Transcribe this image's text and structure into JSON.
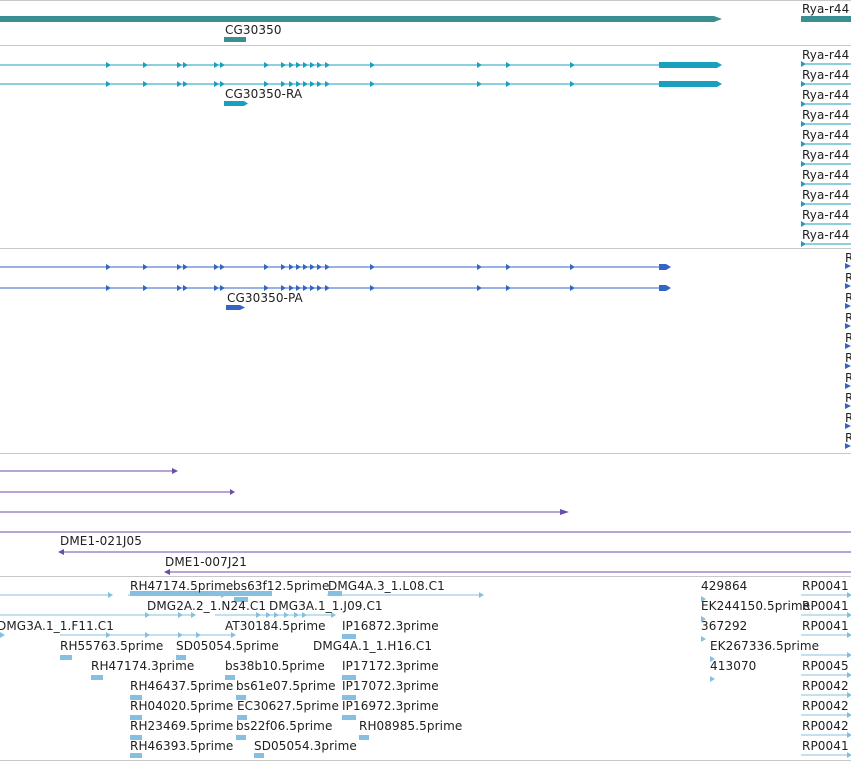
{
  "colors": {
    "gene": "#3a8f92",
    "transcript": "#1aa0bf",
    "protein": "#3366c4",
    "clone": "#6b4ea8",
    "est": "#86c0e0",
    "separator": "#c8c8c8"
  },
  "tracks": {
    "gene": {
      "labels": [
        "CG30350",
        "Rya-r44"
      ]
    },
    "transcripts": {
      "main_label": "CG30350-RA",
      "side_labels": [
        "Rya-r44",
        "Rya-r44",
        "Rya-r44",
        "Rya-r44",
        "Rya-r44",
        "Rya-r44",
        "Rya-r44",
        "Rya-r44",
        "Rya-r44",
        "Rya-r44"
      ]
    },
    "proteins": {
      "main_label": "CG30350-PA",
      "side_labels": [
        "R",
        "R",
        "R",
        "R",
        "R",
        "R",
        "R",
        "R",
        "R",
        "R"
      ]
    },
    "clones": {
      "labels": [
        "DME1-021J05",
        "DME1-007J21"
      ]
    },
    "ests": {
      "labels": [
        "RH47174.5prime",
        "bs63f12.5prime",
        "DMG4A.3_1.L08.C1",
        "429864",
        "RP0041",
        "DMG2A.2_1.N24.C1",
        "DMG3A.1_1.J09.C1",
        "EK244150.5prime",
        "RP0041",
        "DMG3A.1_1.F11.C1",
        "AT30184.5prime",
        "IP16872.3prime",
        "367292",
        "RP0041",
        "RH55763.5prime",
        "SD05054.5prime",
        "DMG4A.1_1.H16.C1",
        "EK267336.5prime",
        "RH47174.3prime",
        "bs38b10.5prime",
        "IP17172.3prime",
        "413070",
        "RP0045",
        "RH46437.5prime",
        "bs61e07.5prime",
        "IP17072.3prime",
        "RP0042",
        "RH04020.5prime",
        "EC30627.5prime",
        "IP16972.3prime",
        "RP0042",
        "RH23469.5prime",
        "bs22f06.5prime",
        "RH08985.5prime",
        "RP0042",
        "RH46393.5prime",
        "SD05054.3prime",
        "RP0041"
      ]
    }
  }
}
